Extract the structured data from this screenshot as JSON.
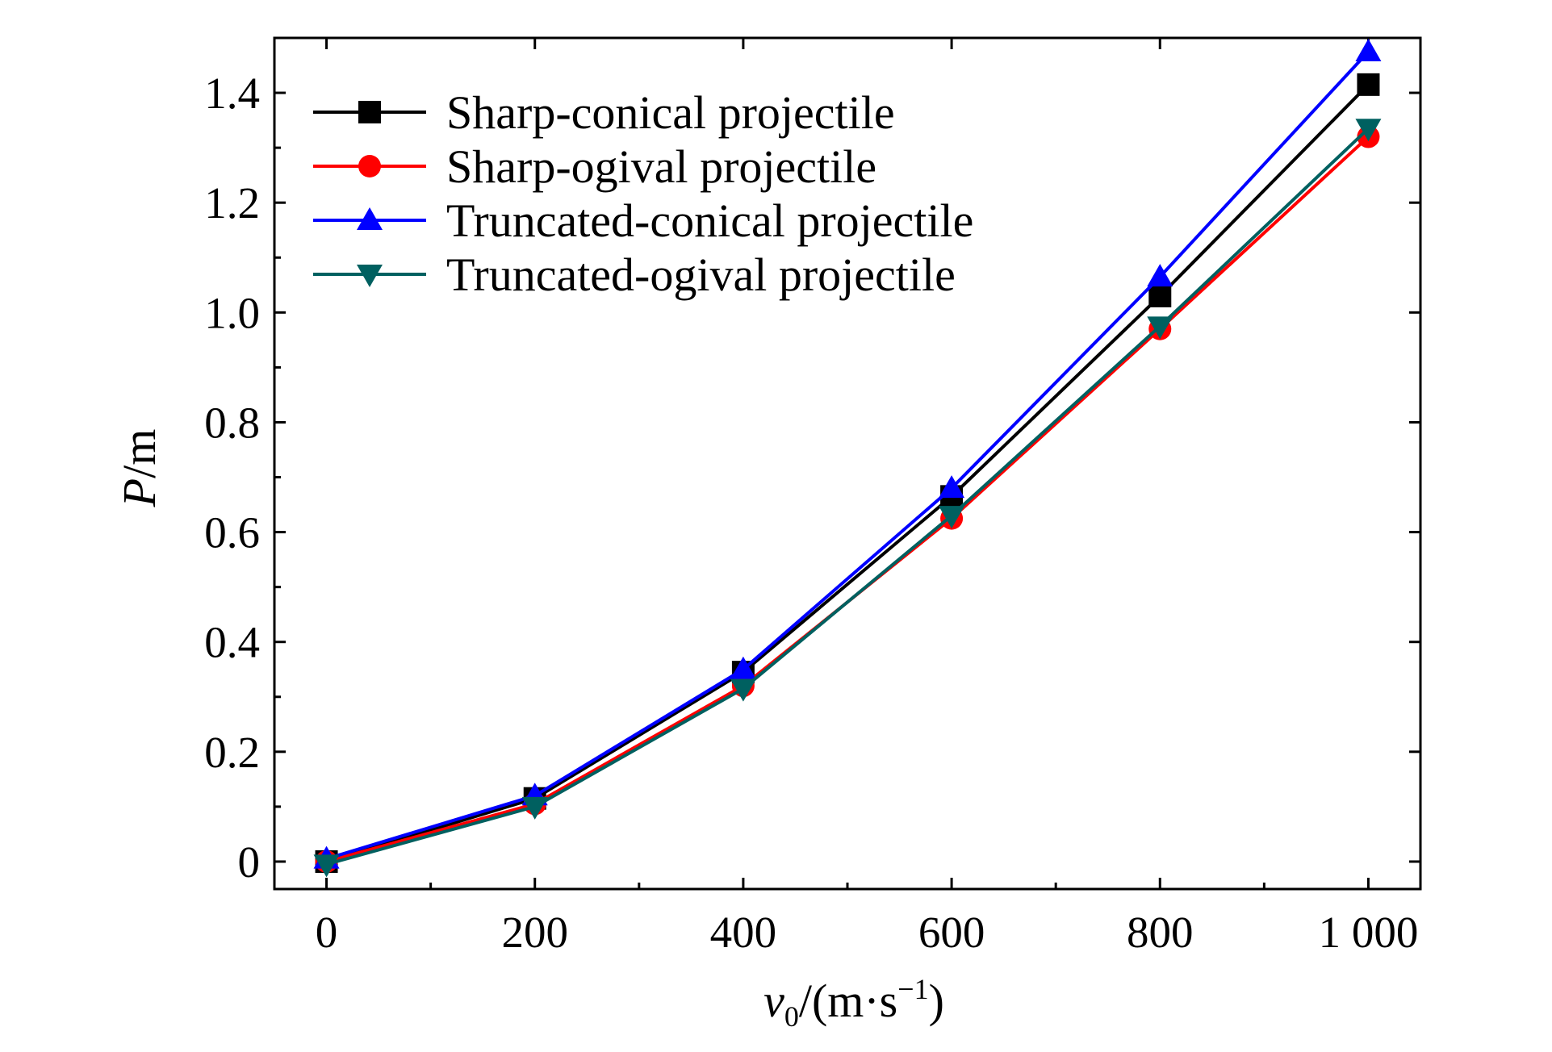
{
  "chart_data": {
    "type": "line",
    "xlabel": {
      "var": "v",
      "sub": "0",
      "unit_open": "/(m·s",
      "sup": "−1",
      "unit_close": ")"
    },
    "ylabel": {
      "var": "P",
      "unit": "/m"
    },
    "x": [
      0,
      200,
      400,
      600,
      800,
      1000
    ],
    "xlim": [
      -50,
      1050
    ],
    "ylim": [
      -0.05,
      1.5
    ],
    "xticks": [
      0,
      200,
      400,
      600,
      800,
      1000
    ],
    "xtick_labels": [
      "0",
      "200",
      "400",
      "600",
      "800",
      "1 000"
    ],
    "yticks": [
      0,
      0.2,
      0.4,
      0.6,
      0.8,
      1.0,
      1.2,
      1.4
    ],
    "ytick_labels": [
      "0",
      "0.2",
      "0.4",
      "0.6",
      "0.8",
      "1.0",
      "1.2",
      "1.4"
    ],
    "grid": false,
    "legend_position": "top-left",
    "series": [
      {
        "name": "Sharp-conical projectile",
        "color": "#000000",
        "marker": "square",
        "values": [
          0,
          0.115,
          0.345,
          0.665,
          1.03,
          1.415
        ]
      },
      {
        "name": "Sharp-ogival projectile",
        "color": "#ff0000",
        "marker": "circle",
        "values": [
          0,
          0.105,
          0.32,
          0.625,
          0.97,
          1.32
        ]
      },
      {
        "name": "Truncated-conical projectile",
        "color": "#0000ff",
        "marker": "triangle-up",
        "values": [
          0.005,
          0.12,
          0.35,
          0.68,
          1.065,
          1.475
        ]
      },
      {
        "name": "Truncated-ogival projectile",
        "color": "#006060",
        "marker": "triangle-down",
        "values": [
          -0.005,
          0.1,
          0.315,
          0.63,
          0.975,
          1.335
        ]
      }
    ]
  }
}
